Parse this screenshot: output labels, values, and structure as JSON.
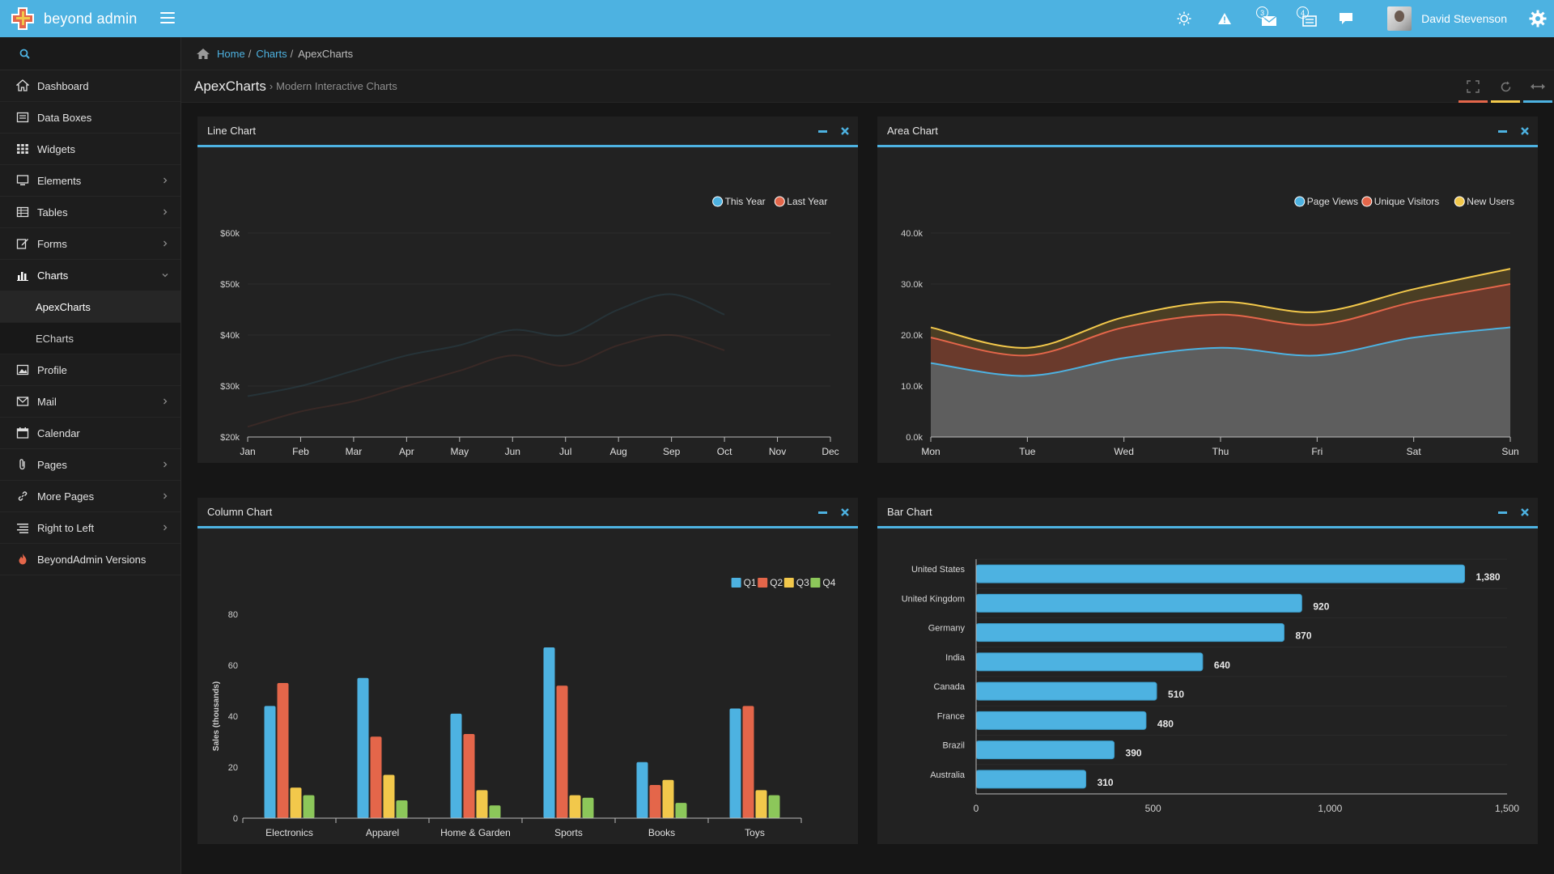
{
  "app": {
    "name": "beyond admin"
  },
  "navbar": {
    "badge_mail": "3",
    "badge_tasks": "4",
    "user_name": "David Stevenson"
  },
  "sidebar": {
    "items": [
      {
        "label": "Dashboard",
        "icon": "home-icon",
        "chevron": false
      },
      {
        "label": "Data Boxes",
        "icon": "databox-icon",
        "chevron": false
      },
      {
        "label": "Widgets",
        "icon": "grid-icon",
        "chevron": false
      },
      {
        "label": "Elements",
        "icon": "monitor-icon",
        "chevron": true
      },
      {
        "label": "Tables",
        "icon": "table-icon",
        "chevron": true
      },
      {
        "label": "Forms",
        "icon": "edit-icon",
        "chevron": true
      },
      {
        "label": "Charts",
        "icon": "bar-chart-icon",
        "chevron": true,
        "expanded": true
      },
      {
        "label": "ApexCharts",
        "sub": true,
        "active": true
      },
      {
        "label": "ECharts",
        "sub": true
      },
      {
        "label": "Profile",
        "icon": "picture-icon",
        "chevron": false
      },
      {
        "label": "Mail",
        "icon": "envelope-icon",
        "chevron": true
      },
      {
        "label": "Calendar",
        "icon": "calendar-icon",
        "chevron": false
      },
      {
        "label": "Pages",
        "icon": "paperclip-icon",
        "chevron": true
      },
      {
        "label": "More Pages",
        "icon": "link-icon",
        "chevron": true
      },
      {
        "label": "Right to Left",
        "icon": "align-right-icon",
        "chevron": true
      },
      {
        "label": "BeyondAdmin Versions",
        "icon": "fire-icon",
        "chevron": false
      }
    ]
  },
  "breadcrumb": {
    "home": "Home",
    "charts": "Charts",
    "current": "ApexCharts"
  },
  "page": {
    "title": "ApexCharts",
    "subtitle": "Modern Interactive Charts"
  },
  "colors": {
    "accent": "#4db2e1",
    "red": "#e4664a",
    "yellow": "#f2c84b",
    "green": "#8cc75a"
  },
  "widgets": {
    "line": {
      "title": "Line Chart"
    },
    "area": {
      "title": "Area Chart"
    },
    "column": {
      "title": "Column Chart"
    },
    "bar": {
      "title": "Bar Chart"
    }
  },
  "chart_data": [
    {
      "id": "line",
      "type": "line",
      "categories": [
        "Jan",
        "Feb",
        "Mar",
        "Apr",
        "May",
        "Jun",
        "Jul",
        "Aug",
        "Sep",
        "Oct",
        "Nov",
        "Dec"
      ],
      "series": [
        {
          "name": "This Year",
          "color": "#4db2e1",
          "values": [
            28,
            30,
            33,
            36,
            38,
            41,
            40,
            45,
            48,
            44,
            null,
            null
          ]
        },
        {
          "name": "Last Year",
          "color": "#e4664a",
          "values": [
            22,
            25,
            27,
            30,
            33,
            36,
            34,
            38,
            40,
            37,
            null,
            null
          ]
        }
      ],
      "yticks": [
        "$20k",
        "$30k",
        "$40k",
        "$50k",
        "$60k"
      ],
      "ylim": [
        20,
        60
      ],
      "legend": "top-right"
    },
    {
      "id": "area",
      "type": "area",
      "categories": [
        "Mon",
        "Tue",
        "Wed",
        "Thu",
        "Fri",
        "Sat",
        "Sun"
      ],
      "series": [
        {
          "name": "Page Views",
          "color": "#4db2e1",
          "values": [
            14.5,
            12,
            15.5,
            17.5,
            16,
            19.5,
            21.5
          ]
        },
        {
          "name": "Unique Visitors",
          "color": "#e4664a",
          "values": [
            19.5,
            16,
            21.5,
            24,
            22,
            26.5,
            30
          ]
        },
        {
          "name": "New Users",
          "color": "#f2c84b",
          "values": [
            21.5,
            17.5,
            23.5,
            26.5,
            24.5,
            29,
            33
          ]
        }
      ],
      "yticks": [
        "0.0k",
        "10.0k",
        "20.0k",
        "30.0k",
        "40.0k"
      ],
      "ylim": [
        0,
        40
      ],
      "legend": "top-right"
    },
    {
      "id": "column",
      "type": "bar",
      "categories": [
        "Electronics",
        "Apparel",
        "Home & Garden",
        "Sports",
        "Books",
        "Toys"
      ],
      "series": [
        {
          "name": "Q1",
          "color": "#4db2e1",
          "values": [
            44,
            55,
            41,
            67,
            22,
            43
          ]
        },
        {
          "name": "Q2",
          "color": "#e4664a",
          "values": [
            53,
            32,
            33,
            52,
            13,
            44
          ]
        },
        {
          "name": "Q3",
          "color": "#f2c84b",
          "values": [
            12,
            17,
            11,
            9,
            15,
            11
          ]
        },
        {
          "name": "Q4",
          "color": "#8cc75a",
          "values": [
            9,
            7,
            5,
            8,
            6,
            9
          ]
        }
      ],
      "yticks": [
        "0",
        "20",
        "40",
        "60",
        "80"
      ],
      "ylim": [
        0,
        80
      ],
      "ylabel": "Sales (thousands)",
      "legend": "top-right"
    },
    {
      "id": "bar",
      "type": "bar",
      "orientation": "horizontal",
      "categories": [
        "United States",
        "United Kingdom",
        "Germany",
        "India",
        "Canada",
        "France",
        "Brazil",
        "Australia"
      ],
      "values": [
        1380,
        920,
        870,
        640,
        510,
        480,
        390,
        310
      ],
      "value_labels": [
        "1,380",
        "920",
        "870",
        "640",
        "510",
        "480",
        "390",
        "310"
      ],
      "color": "#4db2e1",
      "xticks": [
        "0",
        "500",
        "1,000",
        "1,500"
      ],
      "xlim": [
        0,
        1500
      ]
    }
  ]
}
